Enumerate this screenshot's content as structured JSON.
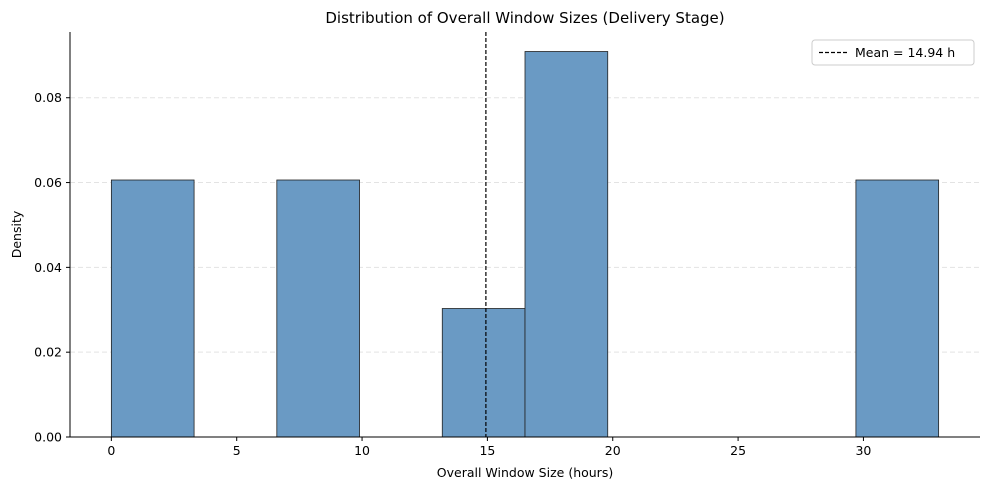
{
  "chart_data": {
    "type": "histogram",
    "title": "Distribution of Overall Window Sizes (Delivery Stage)",
    "xlabel": "Overall Window Size (hours)",
    "ylabel": "Density",
    "xlim": [
      -1.65,
      34.65
    ],
    "ylim": [
      0,
      0.0955
    ],
    "xticks": [
      0,
      5,
      10,
      15,
      20,
      25,
      30
    ],
    "yticks": [
      0.0,
      0.02,
      0.04,
      0.06,
      0.08
    ],
    "ytick_labels": [
      "0.00",
      "0.02",
      "0.04",
      "0.06",
      "0.08"
    ],
    "bins": [
      {
        "x0": 0.0,
        "x1": 3.3,
        "density": 0.0606
      },
      {
        "x0": 3.3,
        "x1": 6.6,
        "density": 0.0
      },
      {
        "x0": 6.6,
        "x1": 9.9,
        "density": 0.0606
      },
      {
        "x0": 9.9,
        "x1": 13.2,
        "density": 0.0
      },
      {
        "x0": 13.2,
        "x1": 16.5,
        "density": 0.0303
      },
      {
        "x0": 16.5,
        "x1": 19.8,
        "density": 0.0909
      },
      {
        "x0": 19.8,
        "x1": 23.1,
        "density": 0.0
      },
      {
        "x0": 23.1,
        "x1": 26.4,
        "density": 0.0
      },
      {
        "x0": 26.4,
        "x1": 29.7,
        "density": 0.0
      },
      {
        "x0": 29.7,
        "x1": 33.0,
        "density": 0.0606
      }
    ],
    "mean_line": {
      "value": 14.94,
      "label": "Mean = 14.94 h"
    },
    "bar_color": "#6a9ac4",
    "bar_edge_color": "#222222",
    "grid": "y-dashed",
    "legend_position": "top-right"
  }
}
